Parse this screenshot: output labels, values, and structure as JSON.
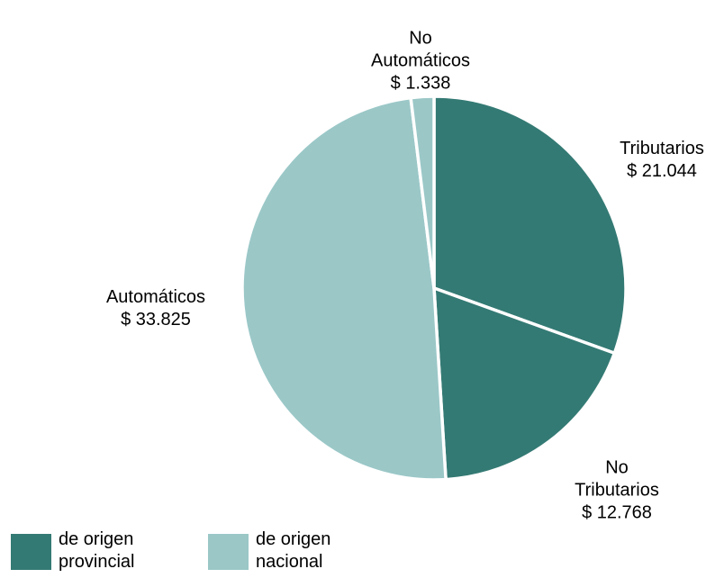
{
  "chart_data": {
    "type": "pie",
    "categories": [
      "Tributarios",
      "No Tributarios",
      "Automáticos",
      "No Automáticos"
    ],
    "values": [
      21044,
      12768,
      33825,
      1338
    ],
    "value_labels": [
      "$ 21.044",
      "$ 12.768",
      "$ 33.825",
      "$ 1.338"
    ],
    "colors": [
      "#347a74",
      "#347a74",
      "#9bc7c7",
      "#9bc7c7"
    ],
    "legend": [
      {
        "name": "de origen provincial",
        "color": "#347a74"
      },
      {
        "name": "de origen nacional",
        "color": "#9bc7c7"
      }
    ]
  }
}
